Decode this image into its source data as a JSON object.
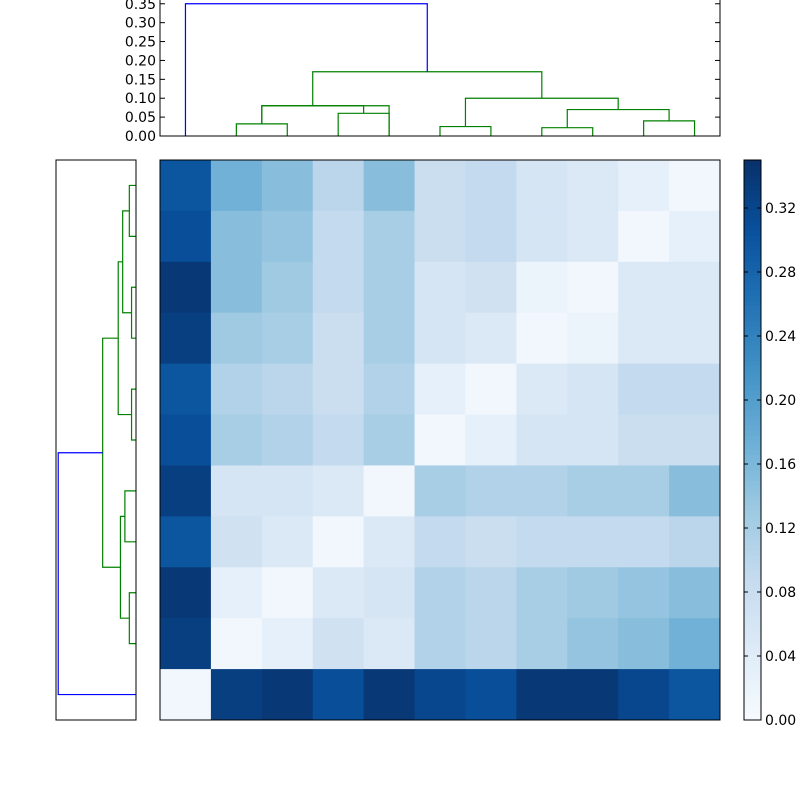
{
  "chart_data": [
    {
      "type": "heatmap",
      "name": "distance-matrix",
      "colormap": "Blues",
      "vmin": 0.0,
      "vmax": 0.35,
      "rows": 11,
      "cols": 11,
      "values": [
        [
          0.3,
          0.17,
          0.15,
          0.1,
          0.15,
          0.08,
          0.09,
          0.06,
          0.05,
          0.03,
          0.01
        ],
        [
          0.31,
          0.15,
          0.14,
          0.09,
          0.12,
          0.08,
          0.09,
          0.06,
          0.05,
          0.01,
          0.03
        ],
        [
          0.34,
          0.15,
          0.13,
          0.09,
          0.12,
          0.06,
          0.07,
          0.02,
          0.01,
          0.05,
          0.05
        ],
        [
          0.33,
          0.13,
          0.12,
          0.08,
          0.12,
          0.06,
          0.05,
          0.01,
          0.02,
          0.05,
          0.05
        ],
        [
          0.3,
          0.11,
          0.1,
          0.08,
          0.11,
          0.03,
          0.01,
          0.05,
          0.06,
          0.09,
          0.09
        ],
        [
          0.31,
          0.12,
          0.11,
          0.09,
          0.12,
          0.01,
          0.03,
          0.06,
          0.06,
          0.08,
          0.08
        ],
        [
          0.33,
          0.06,
          0.06,
          0.05,
          0.01,
          0.12,
          0.11,
          0.11,
          0.12,
          0.12,
          0.15
        ],
        [
          0.3,
          0.07,
          0.05,
          0.01,
          0.05,
          0.09,
          0.08,
          0.09,
          0.09,
          0.09,
          0.1
        ],
        [
          0.34,
          0.03,
          0.01,
          0.05,
          0.06,
          0.11,
          0.1,
          0.12,
          0.13,
          0.14,
          0.15
        ],
        [
          0.33,
          0.01,
          0.03,
          0.07,
          0.05,
          0.11,
          0.1,
          0.12,
          0.14,
          0.15,
          0.17
        ],
        [
          0.01,
          0.33,
          0.34,
          0.31,
          0.34,
          0.32,
          0.31,
          0.34,
          0.34,
          0.32,
          0.3
        ]
      ],
      "colorbar": {
        "ticks": [
          0.0,
          0.04,
          0.08,
          0.12,
          0.16,
          0.2,
          0.24,
          0.28,
          0.32
        ],
        "tick_labels": [
          "0.00",
          "0.04",
          "0.08",
          "0.12",
          "0.16",
          "0.20",
          "0.24",
          "0.28",
          "0.32"
        ]
      }
    },
    {
      "type": "dendrogram",
      "name": "top-dendrogram",
      "orientation": "top",
      "leaf_count": 11,
      "ylim": [
        0.0,
        0.36
      ],
      "y_ticks": [
        0.0,
        0.05,
        0.1,
        0.15,
        0.2,
        0.25,
        0.3,
        0.35
      ],
      "y_tick_labels": [
        "0.00",
        "0.05",
        "0.10",
        "0.15",
        "0.20",
        "0.25",
        "0.30",
        "0.35"
      ],
      "links": [
        {
          "a": 1,
          "b": 2,
          "a_h": 0.0,
          "b_h": 0.0,
          "h": 0.032,
          "color": "#008000"
        },
        {
          "a": 1.5,
          "b": 4,
          "a_h": 0.032,
          "b_h": 0.0,
          "h": 0.08,
          "color": "#008000"
        },
        {
          "a": 4,
          "b": 4,
          "a_h": 0.0,
          "b_h": 0.0,
          "h": 0.0,
          "color": "#008000"
        },
        {
          "a": 3,
          "b": 4,
          "a_h": 0.0,
          "b_h": 0.0,
          "h": 0.06,
          "color": "#008000"
        },
        {
          "a": 1.5,
          "b": 3.5,
          "a_h": 0.032,
          "b_h": 0.06,
          "h": 0.08,
          "color": "#008000"
        },
        {
          "a": 5,
          "b": 6,
          "a_h": 0.0,
          "b_h": 0.0,
          "h": 0.025,
          "color": "#008000"
        },
        {
          "a": 7,
          "b": 8,
          "a_h": 0.0,
          "b_h": 0.0,
          "h": 0.022,
          "color": "#008000"
        },
        {
          "a": 9,
          "b": 10,
          "a_h": 0.0,
          "b_h": 0.0,
          "h": 0.04,
          "color": "#008000"
        },
        {
          "a": 7.5,
          "b": 9.5,
          "a_h": 0.022,
          "b_h": 0.04,
          "h": 0.07,
          "color": "#008000"
        },
        {
          "a": 5.5,
          "b": 8.5,
          "a_h": 0.025,
          "b_h": 0.07,
          "h": 0.1,
          "color": "#008000"
        },
        {
          "a": 2.5,
          "b": 7,
          "a_h": 0.08,
          "b_h": 0.1,
          "h": 0.17,
          "color": "#008000"
        },
        {
          "a": 0,
          "b": 4.75,
          "a_h": 0.0,
          "b_h": 0.17,
          "h": 0.35,
          "color": "#0000ff"
        }
      ]
    },
    {
      "type": "dendrogram",
      "name": "left-dendrogram",
      "orientation": "left",
      "leaf_count": 11,
      "xlim": [
        0.0,
        0.36
      ],
      "links": [
        {
          "a": 0,
          "b": 1,
          "a_h": 0.0,
          "b_h": 0.0,
          "h": 0.03,
          "color": "#008000"
        },
        {
          "a": 2,
          "b": 3,
          "a_h": 0.0,
          "b_h": 0.0,
          "h": 0.02,
          "color": "#008000"
        },
        {
          "a": 0.5,
          "b": 2.5,
          "a_h": 0.03,
          "b_h": 0.02,
          "h": 0.06,
          "color": "#008000"
        },
        {
          "a": 4,
          "b": 5,
          "a_h": 0.0,
          "b_h": 0.0,
          "h": 0.02,
          "color": "#008000"
        },
        {
          "a": 1.5,
          "b": 4.5,
          "a_h": 0.06,
          "b_h": 0.02,
          "h": 0.08,
          "color": "#008000"
        },
        {
          "a": 6,
          "b": 7,
          "a_h": 0.0,
          "b_h": 0.0,
          "h": 0.05,
          "color": "#008000"
        },
        {
          "a": 8,
          "b": 9,
          "a_h": 0.0,
          "b_h": 0.0,
          "h": 0.03,
          "color": "#008000"
        },
        {
          "a": 6.5,
          "b": 8.5,
          "a_h": 0.05,
          "b_h": 0.03,
          "h": 0.07,
          "color": "#008000"
        },
        {
          "a": 3,
          "b": 7.5,
          "a_h": 0.08,
          "b_h": 0.07,
          "h": 0.15,
          "color": "#008000"
        },
        {
          "a": 5.25,
          "b": 10,
          "a_h": 0.15,
          "b_h": 0.0,
          "h": 0.35,
          "color": "#0000ff"
        }
      ]
    }
  ]
}
